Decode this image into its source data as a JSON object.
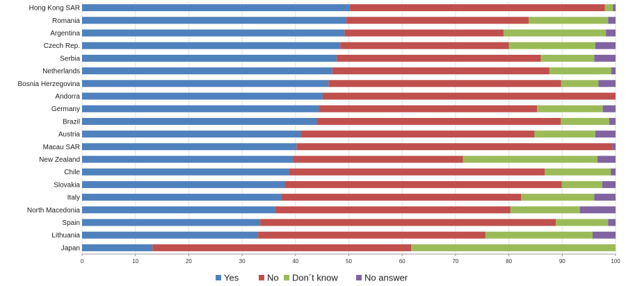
{
  "chart_data": {
    "type": "bar",
    "orientation": "horizontal",
    "stacked": true,
    "categories": [
      "Hong Kong SAR",
      "Romania",
      "Argentina",
      "Czech Rep.",
      "Serbia",
      "Netherlands",
      "Bosnia Herzegovina",
      "Andorra",
      "Germany",
      "Brazil",
      "Austria",
      "Macau SAR",
      "New Zealand",
      "Chile",
      "Slovakia",
      "Italy",
      "North Macedonia",
      "Spain",
      "Lithuania",
      "Japan"
    ],
    "series": [
      {
        "name": "Yes",
        "color": "#4f81bd",
        "values": [
          50.1,
          49.5,
          49.2,
          48.4,
          47.7,
          46.9,
          46.2,
          45.1,
          44.4,
          44.0,
          41.0,
          40.2,
          39.5,
          38.8,
          38.0,
          37.4,
          36.2,
          33.4,
          33.0,
          13.2
        ]
      },
      {
        "name": "No",
        "color": "#c0504d",
        "values": [
          47.9,
          34.2,
          29.8,
          31.6,
          38.3,
          40.7,
          43.6,
          54.9,
          40.9,
          45.7,
          43.8,
          59.2,
          31.9,
          47.9,
          51.9,
          44.9,
          44.1,
          55.4,
          42.6,
          48.5
        ]
      },
      {
        "name": "Don´t know",
        "color": "#9bbb59",
        "values": [
          1.5,
          14.9,
          19.2,
          16.2,
          10.0,
          11.6,
          7.0,
          0.0,
          12.3,
          9.1,
          11.4,
          0.0,
          25.2,
          12.4,
          7.6,
          13.7,
          13.0,
          9.8,
          20.1,
          38.3
        ]
      },
      {
        "name": "No answer",
        "color": "#8064a2",
        "values": [
          0.5,
          1.4,
          1.8,
          3.8,
          4.0,
          0.8,
          3.2,
          0.0,
          2.4,
          1.2,
          3.8,
          0.6,
          3.4,
          0.9,
          2.5,
          4.0,
          6.7,
          1.4,
          4.3,
          0.0
        ]
      }
    ],
    "xlim": [
      0,
      100
    ],
    "xticks": [
      "0",
      "10",
      "20",
      "30",
      "40",
      "50",
      "60",
      "70",
      "80",
      "90",
      "100"
    ],
    "grid": true,
    "legend": "bottom"
  }
}
